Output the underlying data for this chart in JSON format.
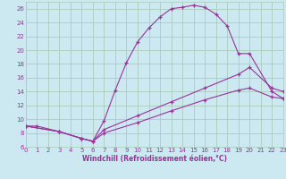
{
  "xlabel": "Windchill (Refroidissement éolien,°C)",
  "bg_color": "#cce8f0",
  "grid_color": "#aaccbb",
  "line_color": "#993399",
  "xlim": [
    0,
    23
  ],
  "ylim": [
    6,
    27
  ],
  "yticks": [
    6,
    8,
    10,
    12,
    14,
    16,
    18,
    20,
    22,
    24,
    26
  ],
  "xticks": [
    0,
    1,
    2,
    3,
    4,
    5,
    6,
    7,
    8,
    9,
    10,
    11,
    12,
    13,
    14,
    15,
    16,
    17,
    18,
    19,
    20,
    21,
    22,
    23
  ],
  "series1_x": [
    0,
    1,
    3,
    5,
    6,
    7,
    8,
    9,
    10,
    11,
    12,
    13,
    14,
    15,
    16,
    17,
    18,
    19,
    20,
    22,
    23
  ],
  "series1_y": [
    9,
    9,
    8.2,
    7.2,
    6.8,
    9.8,
    14.2,
    18.2,
    21.2,
    23.2,
    24.8,
    26,
    26.2,
    26.5,
    26.2,
    25.2,
    23.5,
    19.5,
    19.5,
    14,
    13
  ],
  "series2_x": [
    0,
    3,
    5,
    6,
    7,
    10,
    13,
    16,
    19,
    20,
    22,
    23
  ],
  "series2_y": [
    9,
    8.2,
    7.2,
    6.8,
    8.5,
    10.5,
    12.5,
    14.5,
    16.5,
    17.5,
    14.5,
    14
  ],
  "series3_x": [
    0,
    3,
    5,
    6,
    7,
    10,
    13,
    16,
    19,
    20,
    22,
    23
  ],
  "series3_y": [
    9,
    8.2,
    7.2,
    6.8,
    8.0,
    9.5,
    11.2,
    12.8,
    14.2,
    14.5,
    13.2,
    13.0
  ]
}
